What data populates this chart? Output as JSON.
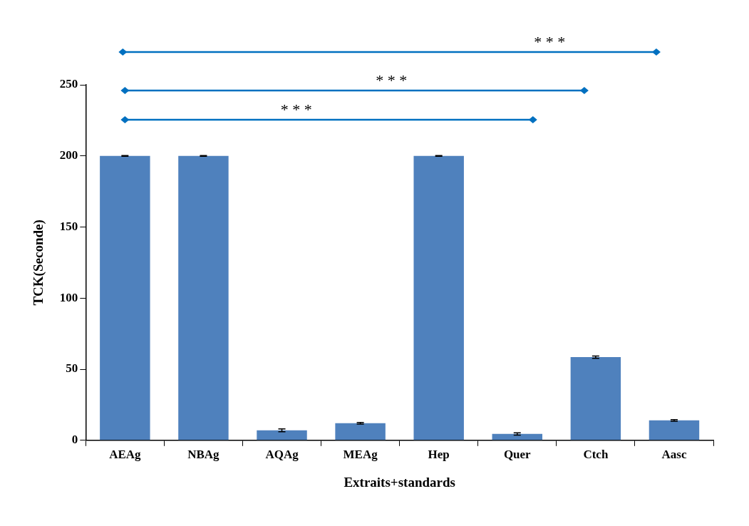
{
  "chart_data": {
    "type": "bar",
    "xlabel": "Extraits+standards",
    "ylabel": "TCK(Seconde)",
    "categories": [
      "AEAg",
      "NBAg",
      "AQAg",
      "MEAg",
      "Hep",
      "Quer",
      "Ctch",
      "Aasc"
    ],
    "values": [
      200,
      200,
      7,
      12,
      200,
      4.5,
      58.5,
      14
    ],
    "errors": [
      0.3,
      0.3,
      1,
      0.6,
      0.3,
      0.8,
      0.8,
      0.6
    ],
    "color": "#4f81bd",
    "ylim": [
      0,
      250
    ],
    "yticks": [
      0,
      50,
      100,
      150,
      200,
      250
    ],
    "grid": false,
    "legend": false,
    "annotations": [
      "* * *",
      "* * *",
      "* * *"
    ]
  }
}
